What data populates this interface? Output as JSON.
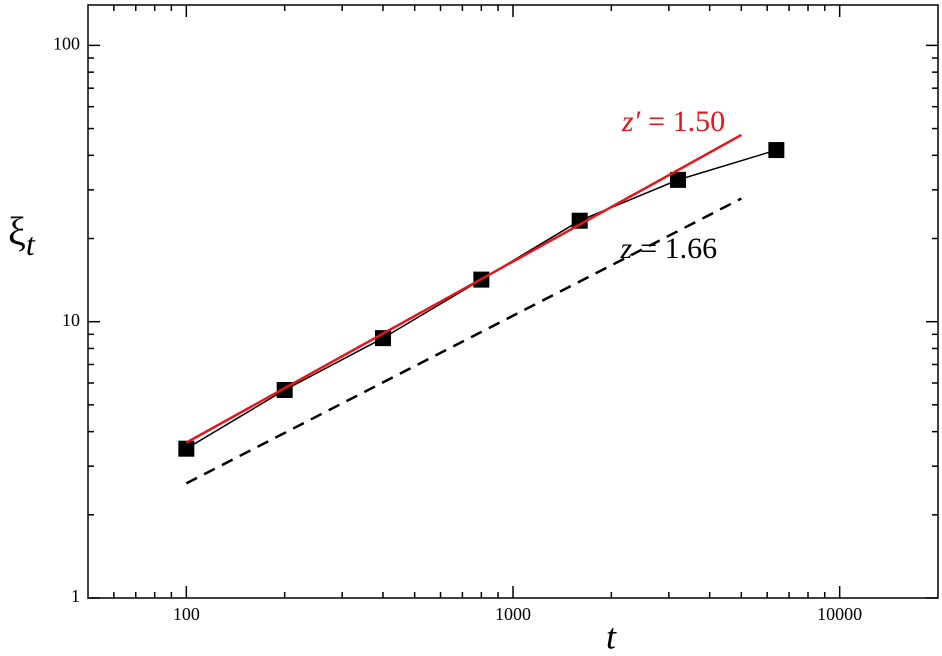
{
  "chart_data": {
    "type": "line",
    "xlabel": "t",
    "ylabel": {
      "symbol": "ξ",
      "subscript": "t"
    },
    "xlog": true,
    "ylog": true,
    "xlim": [
      50,
      20000
    ],
    "ylim": [
      1,
      140
    ],
    "xticks": [
      100,
      1000,
      10000
    ],
    "yticks": [
      1,
      10,
      100
    ],
    "minor_ticks": true,
    "series": [
      {
        "color": "#000000",
        "style": "solid",
        "marker": "square",
        "x": [
          100,
          200,
          400,
          800,
          1600,
          3200,
          6400
        ],
        "values": [
          3.47,
          5.66,
          8.72,
          14.2,
          23.2,
          32.6,
          41.8
        ]
      },
      {
        "color": "#e8141c",
        "style": "solid",
        "marker": "none",
        "x": [
          100,
          5000
        ],
        "values": [
          3.65,
          47.4
        ]
      },
      {
        "color": "#000000",
        "style": "dashed",
        "marker": "none",
        "x": [
          100,
          5000
        ],
        "values": [
          2.6,
          27.9
        ]
      }
    ],
    "annotations": [
      {
        "symbol": "z′",
        "text": "= 1.50",
        "color": "#e8141c",
        "x": 3100,
        "y": 52
      },
      {
        "symbol": "z",
        "text": "= 1.66",
        "color": "#000000",
        "x": 3000,
        "y": 18
      }
    ]
  }
}
